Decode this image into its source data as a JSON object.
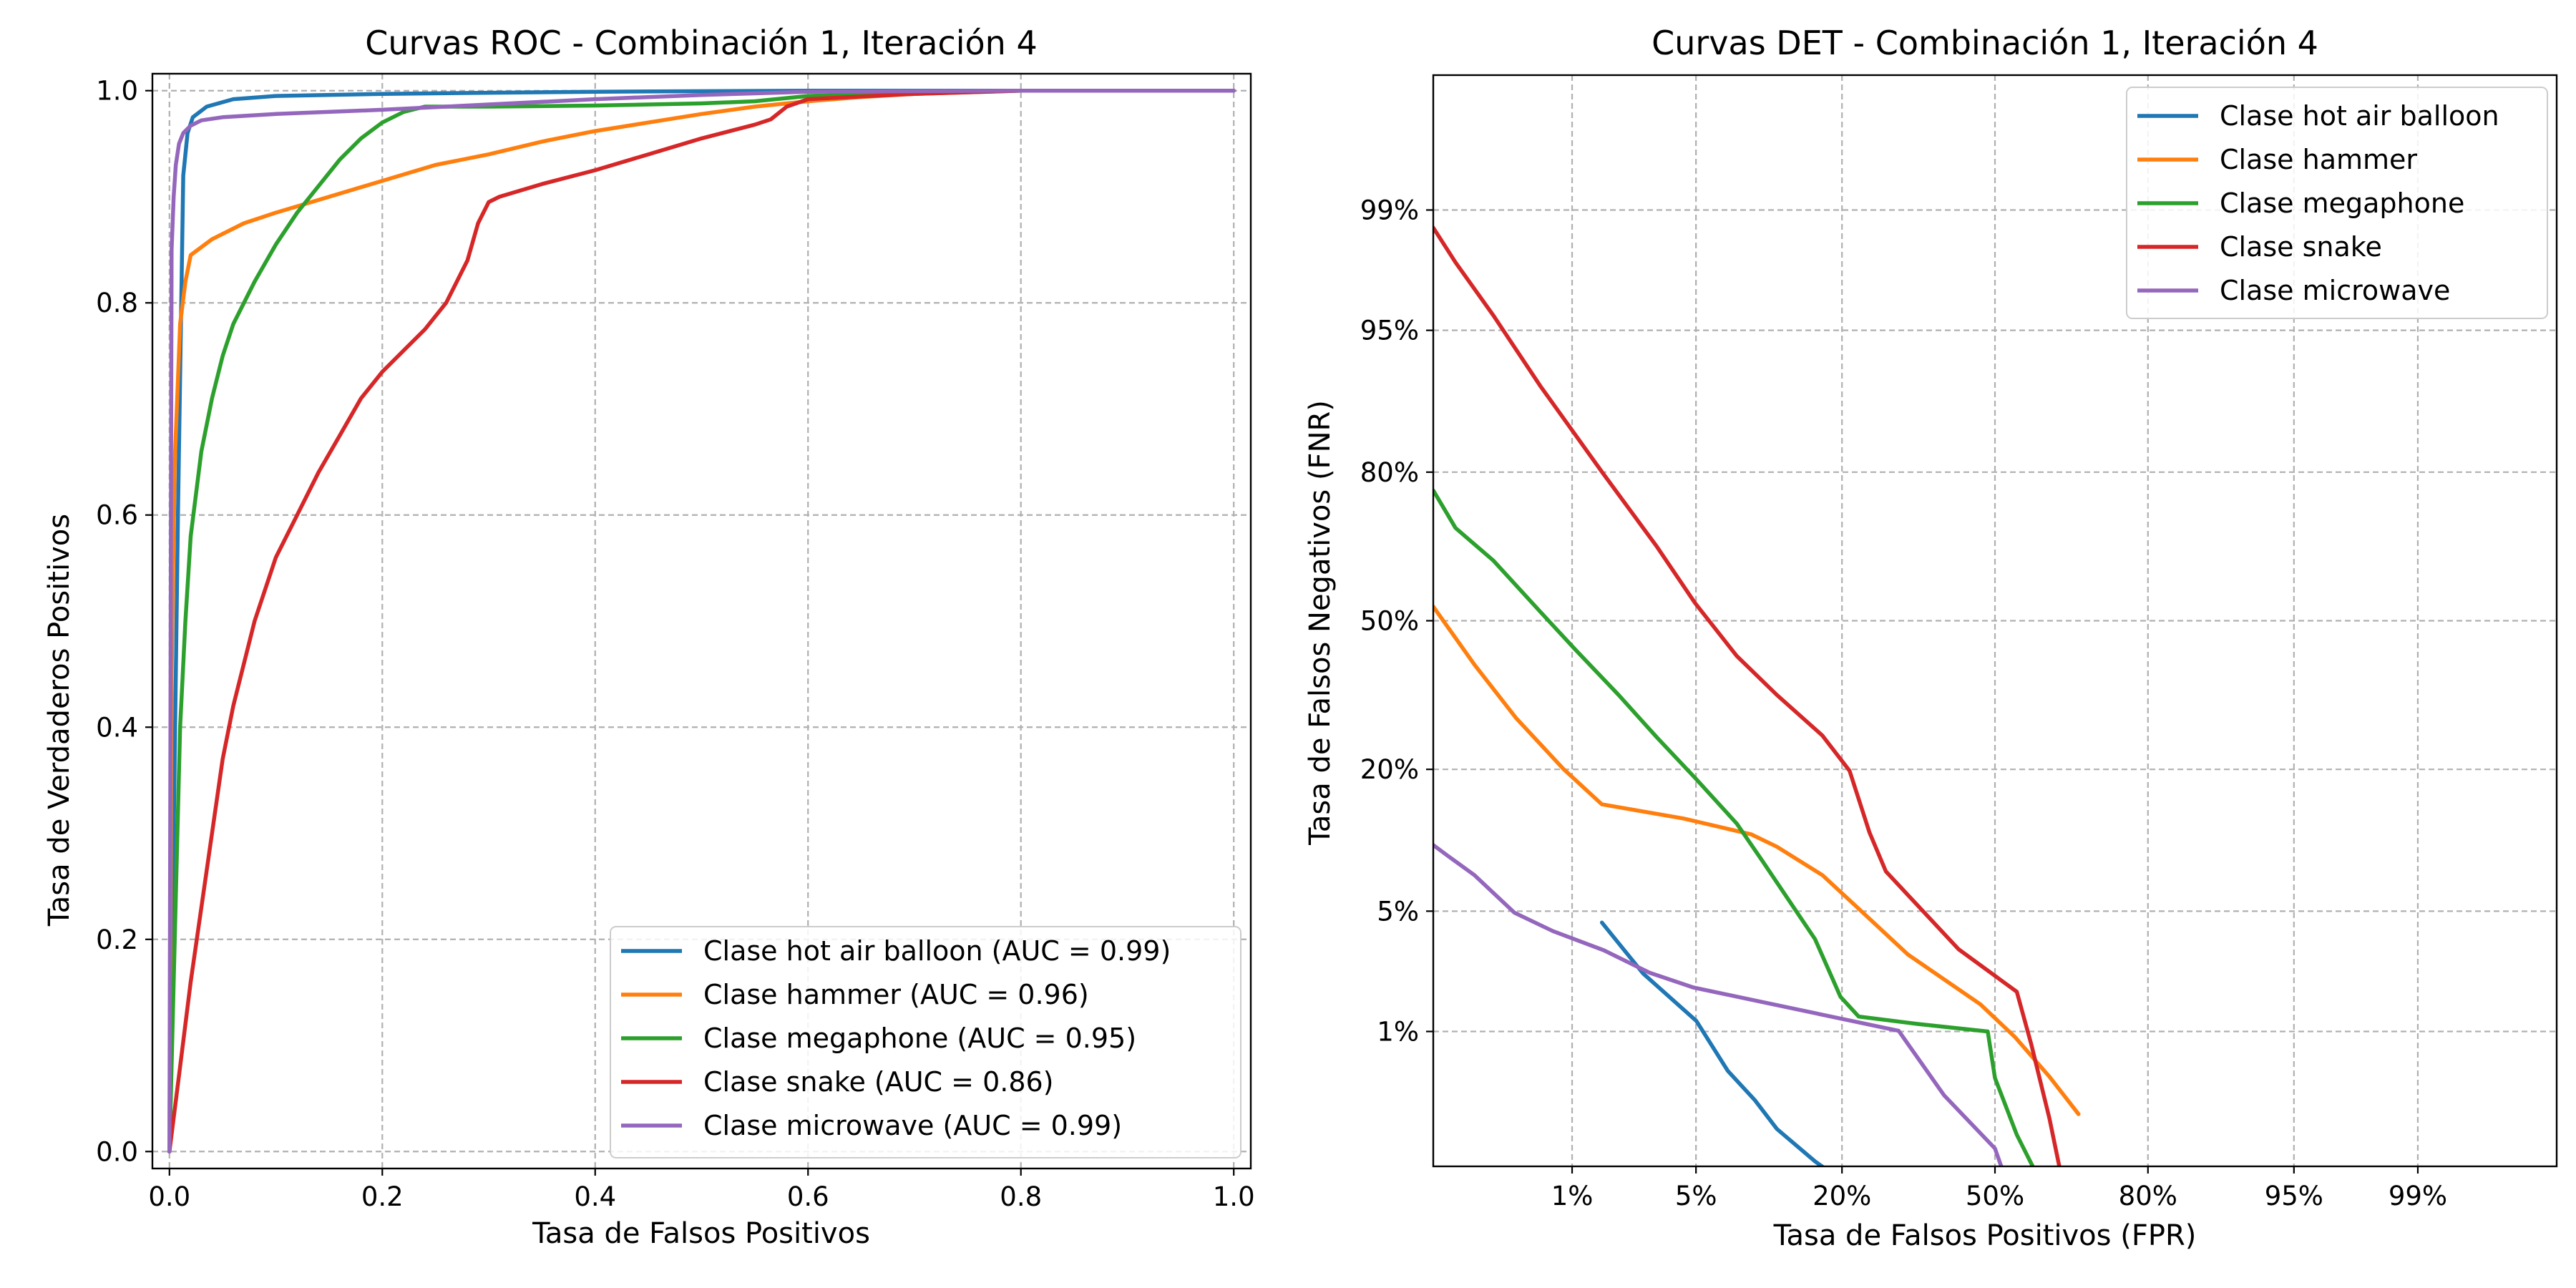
{
  "chart_data": [
    {
      "type": "line",
      "title": "Curvas ROC - Combinación 1, Iteración 4",
      "xlabel": "Tasa de Falsos Positivos",
      "ylabel": "Tasa de Verdaderos Positivos",
      "xlim": [
        0,
        1
      ],
      "ylim": [
        0,
        1
      ],
      "x_ticks": [
        "0.0",
        "0.2",
        "0.4",
        "0.6",
        "0.8",
        "1.0"
      ],
      "y_ticks": [
        "0.0",
        "0.2",
        "0.4",
        "0.6",
        "0.8",
        "1.0"
      ],
      "grid": true,
      "legend_position": "bottom-right",
      "series": [
        {
          "name": "Clase hot air balloon (AUC = 0.99)",
          "color": "#1f77b4",
          "x": [
            0,
            0.008,
            0.013,
            0.017,
            0.022,
            0.035,
            0.06,
            0.1,
            0.2,
            0.4,
            0.6,
            0.8,
            1
          ],
          "y": [
            0,
            0.6,
            0.92,
            0.96,
            0.975,
            0.985,
            0.992,
            0.995,
            0.997,
            0.999,
            1,
            1,
            1
          ]
        },
        {
          "name": "Clase hammer (AUC = 0.96)",
          "color": "#ff7f0e",
          "x": [
            0,
            0.002,
            0.005,
            0.01,
            0.015,
            0.02,
            0.04,
            0.07,
            0.1,
            0.15,
            0.2,
            0.25,
            0.3,
            0.35,
            0.4,
            0.45,
            0.5,
            0.55,
            0.6,
            0.65,
            0.7,
            0.8,
            1
          ],
          "y": [
            0,
            0.45,
            0.65,
            0.78,
            0.82,
            0.845,
            0.86,
            0.875,
            0.885,
            0.9,
            0.915,
            0.93,
            0.94,
            0.952,
            0.962,
            0.97,
            0.978,
            0.985,
            0.99,
            0.994,
            0.997,
            1,
            1
          ]
        },
        {
          "name": "Clase megaphone (AUC = 0.95)",
          "color": "#2ca02c",
          "x": [
            0,
            0.005,
            0.01,
            0.015,
            0.02,
            0.03,
            0.04,
            0.05,
            0.06,
            0.08,
            0.1,
            0.12,
            0.14,
            0.16,
            0.18,
            0.2,
            0.22,
            0.24,
            0.3,
            0.4,
            0.5,
            0.55,
            0.6,
            0.7,
            0.8,
            1
          ],
          "y": [
            0,
            0.2,
            0.4,
            0.5,
            0.58,
            0.66,
            0.71,
            0.75,
            0.78,
            0.82,
            0.855,
            0.885,
            0.91,
            0.935,
            0.955,
            0.97,
            0.98,
            0.985,
            0.985,
            0.986,
            0.988,
            0.99,
            0.995,
            0.998,
            1,
            1
          ]
        },
        {
          "name": "Clase snake (AUC = 0.86)",
          "color": "#d62728",
          "x": [
            0,
            0.01,
            0.02,
            0.03,
            0.04,
            0.05,
            0.06,
            0.08,
            0.1,
            0.12,
            0.14,
            0.16,
            0.18,
            0.2,
            0.22,
            0.24,
            0.26,
            0.28,
            0.29,
            0.3,
            0.31,
            0.35,
            0.4,
            0.45,
            0.5,
            0.55,
            0.565,
            0.58,
            0.6,
            0.7,
            0.8,
            1
          ],
          "y": [
            0,
            0.08,
            0.16,
            0.23,
            0.3,
            0.37,
            0.42,
            0.5,
            0.56,
            0.6,
            0.64,
            0.675,
            0.71,
            0.735,
            0.755,
            0.775,
            0.8,
            0.84,
            0.875,
            0.895,
            0.9,
            0.912,
            0.925,
            0.94,
            0.955,
            0.968,
            0.973,
            0.985,
            0.992,
            0.997,
            1,
            1
          ]
        },
        {
          "name": "Clase microwave (AUC = 0.99)",
          "color": "#9467bd",
          "x": [
            0,
            0.002,
            0.004,
            0.006,
            0.009,
            0.013,
            0.02,
            0.03,
            0.05,
            0.1,
            0.2,
            0.3,
            0.4,
            0.5,
            0.6,
            0.8,
            1
          ],
          "y": [
            0,
            0.85,
            0.9,
            0.93,
            0.95,
            0.96,
            0.967,
            0.972,
            0.975,
            0.978,
            0.982,
            0.987,
            0.992,
            0.996,
            0.999,
            1,
            1
          ]
        }
      ]
    },
    {
      "type": "line",
      "title": "Curvas DET - Combinación 1, Iteración 4",
      "xlabel": "Tasa de Falsos Positivos (FPR)",
      "ylabel": "Tasa de Falsos Negativos (FNR)",
      "scale": "normal-deviate (probit) on both axes",
      "xlim": [
        0.001,
        0.999
      ],
      "ylim": [
        0.001,
        0.999
      ],
      "x_ticks": [
        {
          "value": 0.01,
          "label": "1%"
        },
        {
          "value": 0.05,
          "label": "5%"
        },
        {
          "value": 0.2,
          "label": "20%"
        },
        {
          "value": 0.5,
          "label": "50%"
        },
        {
          "value": 0.8,
          "label": "80%"
        },
        {
          "value": 0.95,
          "label": "95%"
        },
        {
          "value": 0.99,
          "label": "99%"
        }
      ],
      "y_ticks": [
        {
          "value": 0.01,
          "label": "1%"
        },
        {
          "value": 0.05,
          "label": "5%"
        },
        {
          "value": 0.2,
          "label": "20%"
        },
        {
          "value": 0.5,
          "label": "50%"
        },
        {
          "value": 0.8,
          "label": "80%"
        },
        {
          "value": 0.95,
          "label": "95%"
        },
        {
          "value": 0.99,
          "label": "99%"
        }
      ],
      "grid": true,
      "legend_position": "top-right",
      "series": [
        {
          "name": "Clase hot air balloon",
          "color": "#1f77b4",
          "x": [
            0.0153,
            0.0264,
            0.0502,
            0.0708,
            0.0934,
            0.1151,
            0.1611,
            0.2266
          ],
          "y": [
            0.0437,
            0.0229,
            0.0117,
            0.0054,
            0.0033,
            0.002,
            0.0011,
            0.0006
          ]
        },
        {
          "name": "Clase hammer",
          "color": "#ff7f0e",
          "x": [
            0.001,
            0.0021,
            0.0042,
            0.0088,
            0.0153,
            0.0432,
            0.0901,
            0.1151,
            0.1711,
            0.2327,
            0.3156,
            0.4681,
            0.5438,
            0.6179,
            0.6772
          ],
          "y": [
            0.5319,
            0.4013,
            0.2912,
            0.2005,
            0.1492,
            0.1314,
            0.1131,
            0.1003,
            0.0749,
            0.0495,
            0.0294,
            0.0149,
            0.0092,
            0.0049,
            0.0026
          ]
        },
        {
          "name": "Clase megaphone",
          "color": "#2ca02c",
          "x": [
            0.001,
            0.0015,
            0.0029,
            0.0062,
            0.0104,
            0.0192,
            0.0314,
            0.0495,
            0.0778,
            0.1003,
            0.1611,
            0.1977,
            0.2266,
            0.3336,
            0.4841,
            0.5,
            0.5478,
            0.6103
          ],
          "y": [
            0.7698,
            0.7005,
            0.6331,
            0.5199,
            0.4364,
            0.3372,
            0.2546,
            0.1867,
            0.1251,
            0.0869,
            0.0357,
            0.0166,
            0.0125,
            0.0112,
            0.01,
            0.0048,
            0.0018,
            0.0006
          ]
        },
        {
          "name": "Clase snake",
          "color": "#d62728",
          "x": [
            0.001,
            0.0015,
            0.0029,
            0.0062,
            0.0154,
            0.0314,
            0.0495,
            0.0778,
            0.1151,
            0.1711,
            0.2119,
            0.2451,
            0.2743,
            0.4207,
            0.5478,
            0.5793,
            0.6179,
            0.6406
          ],
          "y": [
            0.987,
            0.9788,
            0.958,
            0.908,
            0.7994,
            0.6628,
            0.5398,
            0.4207,
            0.3372,
            0.258,
            0.1977,
            0.1151,
            0.0778,
            0.0314,
            0.0178,
            0.0082,
            0.0024,
            0.0009
          ]
        },
        {
          "name": "Clase microwave",
          "color": "#9467bd",
          "x": [
            0.001,
            0.0013,
            0.0021,
            0.0041,
            0.0075,
            0.0157,
            0.0287,
            0.0485,
            0.2981,
            0.3897,
            0.5,
            0.5279
          ],
          "y": [
            0.102,
            0.0917,
            0.0747,
            0.0491,
            0.0394,
            0.031,
            0.0231,
            0.0189,
            0.0101,
            0.0036,
            0.0014,
            0.0007
          ]
        }
      ]
    }
  ]
}
